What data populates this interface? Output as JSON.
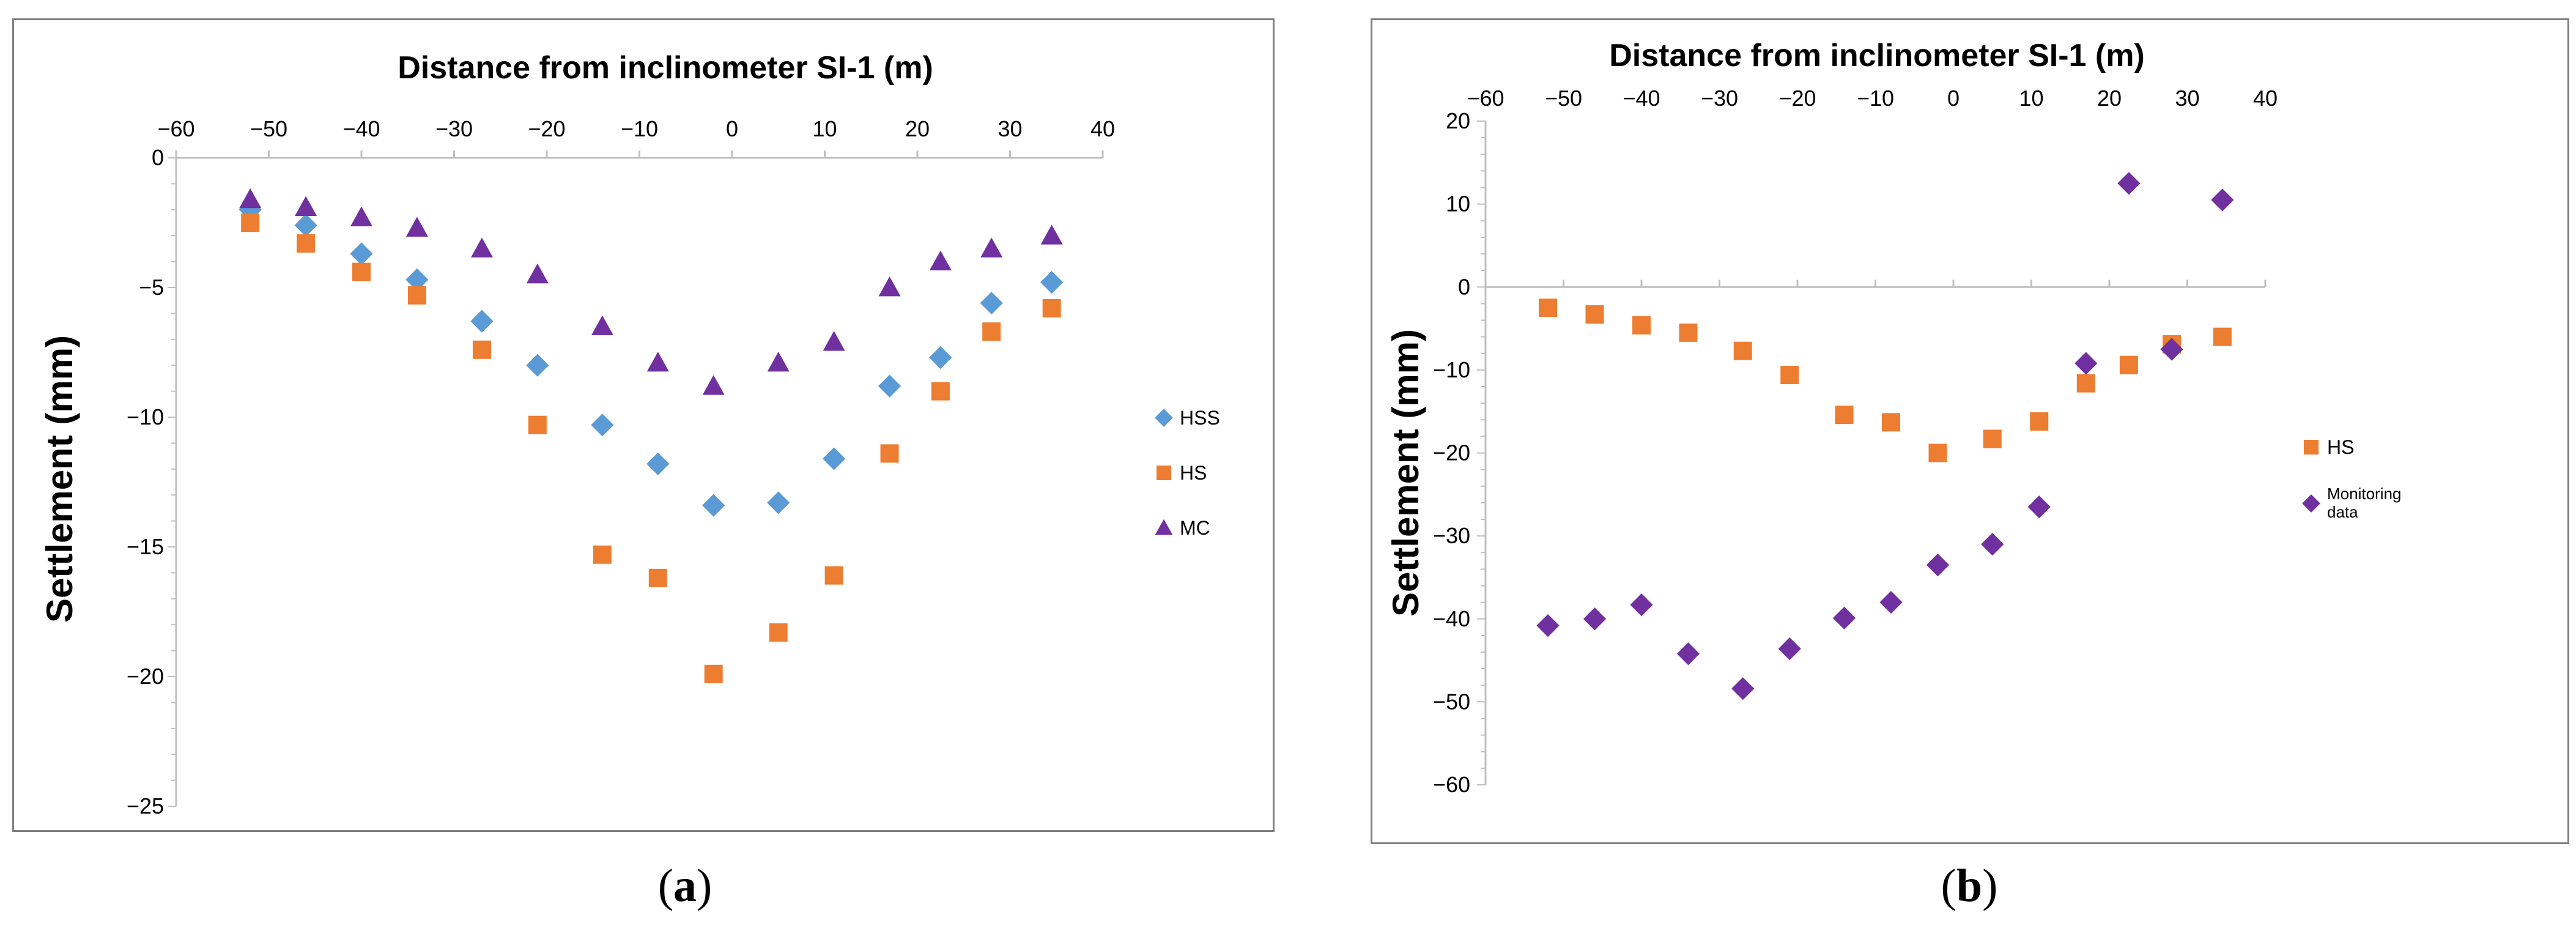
{
  "colors": {
    "hss": "#5b9bd5",
    "hs": "#ed7d31",
    "mc": "#7030a0",
    "monitoring": "#7030a0",
    "axis": "#bfbfbf"
  },
  "captions": {
    "a": "a",
    "b": "b"
  },
  "chart_data": [
    {
      "id": "a",
      "type": "scatter",
      "title": "Distance  from inclinometer  SI-1 (m)",
      "xlabel": "Distance  from inclinometer  SI-1 (m)",
      "ylabel": "Settlement (mm)",
      "xlim": [
        -60,
        40
      ],
      "ylim": [
        -25,
        0
      ],
      "xticks": [
        -60,
        -50,
        -40,
        -30,
        -20,
        -10,
        0,
        10,
        20,
        30,
        40
      ],
      "yticks": [
        0,
        -5,
        -10,
        -15,
        -20,
        -25
      ],
      "xtick_labels": [
        "−60",
        "−50",
        "−40",
        "−30",
        "−20",
        "−10",
        "0",
        "10",
        "20",
        "30",
        "40"
      ],
      "ytick_labels": [
        "0",
        "−5",
        "−10",
        "−15",
        "−20",
        "−25"
      ],
      "legend_position": "right",
      "series": [
        {
          "name": "HSS",
          "marker": "diamond",
          "color": "#5b9bd5",
          "x": [
            -52,
            -46,
            -40,
            -34,
            -27,
            -21,
            -14,
            -8,
            -2,
            5,
            11,
            17,
            22.5,
            28,
            34.5
          ],
          "y": [
            -2.0,
            -2.6,
            -3.7,
            -4.7,
            -6.3,
            -8.0,
            -10.3,
            -11.8,
            -13.4,
            -13.3,
            -11.6,
            -8.8,
            -7.7,
            -5.6,
            -4.8
          ]
        },
        {
          "name": "HS",
          "marker": "square",
          "color": "#ed7d31",
          "x": [
            -52,
            -46,
            -40,
            -34,
            -27,
            -21,
            -14,
            -8,
            -2,
            5,
            11,
            17,
            22.5,
            28,
            34.5
          ],
          "y": [
            -2.5,
            -3.3,
            -4.4,
            -5.3,
            -7.4,
            -10.3,
            -15.3,
            -16.2,
            -19.9,
            -18.3,
            -16.1,
            -11.4,
            -9.0,
            -6.7,
            -5.8
          ]
        },
        {
          "name": "MC",
          "marker": "triangle",
          "color": "#7030a0",
          "x": [
            -52,
            -46,
            -40,
            -34,
            -27,
            -21,
            -14,
            -8,
            -2,
            5,
            11,
            17,
            22.5,
            28,
            34.5
          ],
          "y": [
            -1.6,
            -1.9,
            -2.3,
            -2.7,
            -3.5,
            -4.5,
            -6.5,
            -7.9,
            -8.8,
            -7.9,
            -7.1,
            -5.0,
            -4.0,
            -3.5,
            -3.0
          ]
        }
      ]
    },
    {
      "id": "b",
      "type": "scatter",
      "title": "Distance  from inclinometer  SI-1 (m)",
      "xlabel": "Distance  from inclinometer  SI-1 (m)",
      "ylabel": "Settlement (mm)",
      "xlim": [
        -60,
        40
      ],
      "ylim": [
        -60,
        20
      ],
      "xticks": [
        -60,
        -50,
        -40,
        -30,
        -20,
        -10,
        0,
        10,
        20,
        30,
        40
      ],
      "yticks": [
        20,
        10,
        0,
        -10,
        -20,
        -30,
        -40,
        -50,
        -60
      ],
      "xtick_labels": [
        "−60",
        "−50",
        "−40",
        "−30",
        "−20",
        "−10",
        "0",
        "10",
        "20",
        "30",
        "40"
      ],
      "ytick_labels": [
        "20",
        "10",
        "0",
        "−10",
        "−20",
        "−30",
        "−40",
        "−50",
        "−60"
      ],
      "legend_position": "right",
      "series": [
        {
          "name": "HS",
          "marker": "square",
          "color": "#ed7d31",
          "x": [
            -52,
            -46,
            -40,
            -34,
            -27,
            -21,
            -14,
            -8,
            -2,
            5,
            11,
            17,
            22.5,
            28,
            34.5
          ],
          "y": [
            -2.5,
            -3.3,
            -4.6,
            -5.5,
            -7.7,
            -10.6,
            -15.4,
            -16.3,
            -20.0,
            -18.3,
            -16.2,
            -11.6,
            -9.4,
            -6.9,
            -6.0
          ]
        },
        {
          "name": "Monitoring data",
          "name_lines": [
            "Monitoring",
            "data"
          ],
          "marker": "diamond",
          "color": "#7030a0",
          "x": [
            -52,
            -46,
            -40,
            -34,
            -27,
            -21,
            -14,
            -8,
            -2,
            5,
            11,
            17,
            22.5,
            28,
            34.5
          ],
          "y": [
            -40.8,
            -40.0,
            -38.3,
            -44.2,
            -48.4,
            -43.6,
            -39.9,
            -38.0,
            -33.5,
            -31.0,
            -26.5,
            -9.2,
            12.5,
            -7.5,
            10.5
          ]
        }
      ]
    }
  ]
}
